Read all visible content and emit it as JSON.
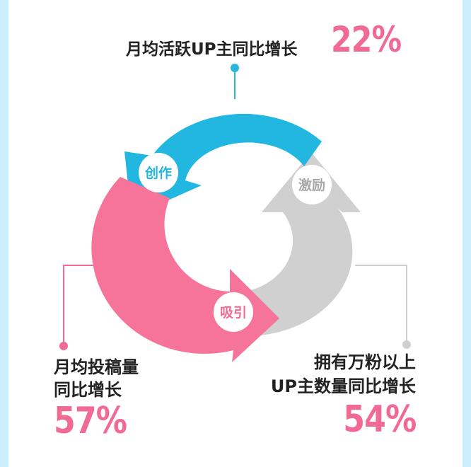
{
  "cycle": {
    "stages": [
      {
        "label": "创作",
        "color": "#22b7e0"
      },
      {
        "label": "激励",
        "color": "#d0d0d0"
      },
      {
        "label": "吸引",
        "color": "#f67399"
      }
    ]
  },
  "callouts": {
    "top": {
      "label": "月均活跃UP主同比增长",
      "value": "22%"
    },
    "left": {
      "line1": "月均投稿量",
      "line2": "同比增长",
      "value": "57%"
    },
    "right": {
      "line1": "拥有万粉以上",
      "line2": "UP主数量同比增长",
      "value": "54%"
    }
  },
  "colors": {
    "accent_pink": "#f06a93",
    "accent_blue": "#22b7e0",
    "grey": "#d0d0d0"
  }
}
